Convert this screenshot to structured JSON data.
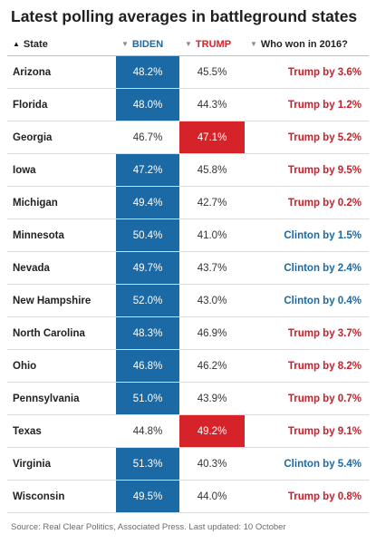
{
  "title": "Latest polling averages in battleground states",
  "headers": {
    "state": "State",
    "biden": "BIDEN",
    "trump": "TRUMP",
    "won2016": "Who won in 2016?"
  },
  "icons": {
    "state_sort": "sort-ascending-arrow",
    "other_sort": "sort-descending-arrow"
  },
  "colors": {
    "biden": "#1b6aa5",
    "trump": "#d6232a",
    "clinton_text": "#1b6aa5",
    "trump_text": "#c8202a"
  },
  "chart_data": {
    "type": "table",
    "columns": [
      "State",
      "BIDEN",
      "TRUMP",
      "Who won in 2016?"
    ],
    "rows": [
      {
        "state": "Arizona",
        "biden": "48.2%",
        "trump": "45.5%",
        "won": "Trump by 3.6%",
        "winner": "Trump"
      },
      {
        "state": "Florida",
        "biden": "48.0%",
        "trump": "44.3%",
        "won": "Trump by 1.2%",
        "winner": "Trump"
      },
      {
        "state": "Georgia",
        "biden": "46.7%",
        "trump": "47.1%",
        "won": "Trump by 5.2%",
        "winner": "Trump"
      },
      {
        "state": "Iowa",
        "biden": "47.2%",
        "trump": "45.8%",
        "won": "Trump by 9.5%",
        "winner": "Trump"
      },
      {
        "state": "Michigan",
        "biden": "49.4%",
        "trump": "42.7%",
        "won": "Trump by 0.2%",
        "winner": "Trump"
      },
      {
        "state": "Minnesota",
        "biden": "50.4%",
        "trump": "41.0%",
        "won": "Clinton by 1.5%",
        "winner": "Clinton"
      },
      {
        "state": "Nevada",
        "biden": "49.7%",
        "trump": "43.7%",
        "won": "Clinton by 2.4%",
        "winner": "Clinton"
      },
      {
        "state": "New Hampshire",
        "biden": "52.0%",
        "trump": "43.0%",
        "won": "Clinton by 0.4%",
        "winner": "Clinton"
      },
      {
        "state": "North Carolina",
        "biden": "48.3%",
        "trump": "46.9%",
        "won": "Trump by 3.7%",
        "winner": "Trump"
      },
      {
        "state": "Ohio",
        "biden": "46.8%",
        "trump": "46.2%",
        "won": "Trump by 8.2%",
        "winner": "Trump"
      },
      {
        "state": "Pennsylvania",
        "biden": "51.0%",
        "trump": "43.9%",
        "won": "Trump by 0.7%",
        "winner": "Trump"
      },
      {
        "state": "Texas",
        "biden": "44.8%",
        "trump": "49.2%",
        "won": "Trump by 9.1%",
        "winner": "Trump"
      },
      {
        "state": "Virginia",
        "biden": "51.3%",
        "trump": "40.3%",
        "won": "Clinton by 5.4%",
        "winner": "Clinton"
      },
      {
        "state": "Wisconsin",
        "biden": "49.5%",
        "trump": "44.0%",
        "won": "Trump by 0.8%",
        "winner": "Trump"
      }
    ]
  },
  "source": "Source: Real Clear Politics, Associated Press. Last updated: 10 October"
}
